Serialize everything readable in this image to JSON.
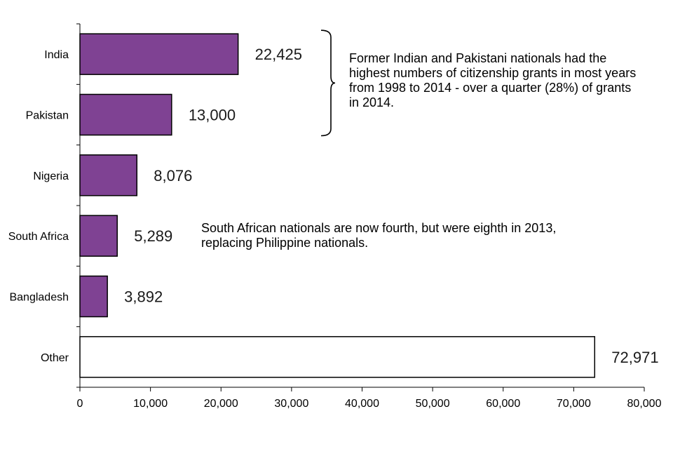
{
  "chart_data": {
    "type": "bar",
    "orientation": "horizontal",
    "categories": [
      "India",
      "Pakistan",
      "Nigeria",
      "South Africa",
      "Bangladesh",
      "Other"
    ],
    "values": [
      22425,
      13000,
      8076,
      5289,
      3892,
      72971
    ],
    "value_labels": [
      "22,425",
      "13,000",
      "8,076",
      "5,289",
      "3,892",
      "72,971"
    ],
    "bar_fills": [
      "#7f4293",
      "#7f4293",
      "#7f4293",
      "#7f4293",
      "#7f4293",
      "#ffffff"
    ],
    "bar_stroke": "#000000",
    "xlim": [
      0,
      80000
    ],
    "x_ticks": [
      0,
      10000,
      20000,
      30000,
      40000,
      50000,
      60000,
      70000,
      80000
    ],
    "x_tick_labels": [
      "0",
      "10,000",
      "20,000",
      "30,000",
      "40,000",
      "50,000",
      "60,000",
      "70,000",
      "80,000"
    ],
    "title": "",
    "xlabel": "",
    "ylabel": "",
    "grid": false,
    "annotations": [
      {
        "text": "Former Indian and Pakistani nationals had the\nhighest numbers of citizenship grants in most years\nfrom 1998 to 2014 - over a quarter (28%) of grants\nin 2014.",
        "brackets": [
          "India",
          "Pakistan"
        ]
      },
      {
        "text": "South African nationals are now fourth, but were eighth in 2013,\nreplacing Philippine nationals."
      }
    ]
  }
}
